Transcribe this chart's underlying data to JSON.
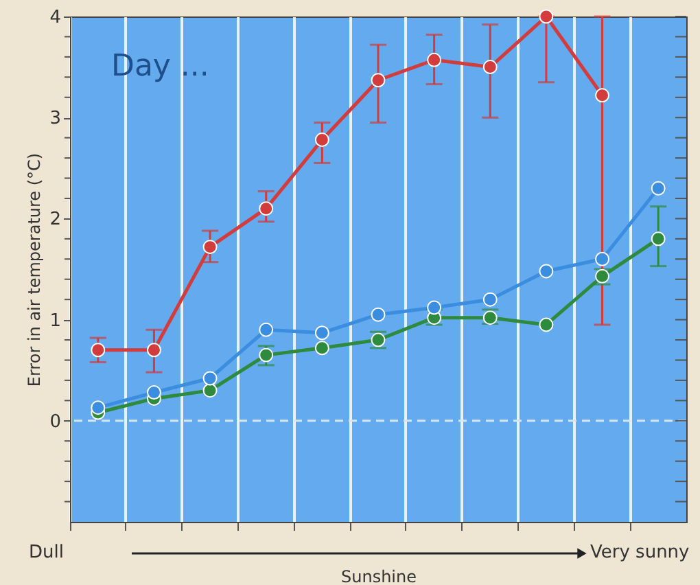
{
  "chart_data": {
    "type": "line",
    "xlabel": "Sunshine",
    "ylabel": "Error in air temperature (°C)",
    "categories": [
      null,
      null,
      null,
      null,
      null,
      null,
      null,
      null,
      null,
      null,
      null
    ],
    "series": [
      {
        "color": "#d23c3c",
        "values": [
          0.7,
          0.7,
          1.72,
          2.1,
          2.78,
          3.37,
          3.57,
          3.5,
          4.0,
          3.22,
          null
        ],
        "errors": [
          [
            0.58,
            0.82
          ],
          [
            0.48,
            0.9
          ],
          [
            1.57,
            1.88
          ],
          [
            1.97,
            2.27
          ],
          [
            2.55,
            2.95
          ],
          [
            2.95,
            3.72
          ],
          [
            3.33,
            3.82
          ],
          [
            3.0,
            3.92
          ],
          [
            3.35,
            4.0
          ],
          [
            0.95,
            4.0
          ],
          null
        ]
      },
      {
        "color": "#3b8de0",
        "values": [
          0.13,
          0.28,
          0.42,
          0.9,
          0.87,
          1.05,
          1.12,
          1.2,
          1.48,
          1.6,
          2.3
        ]
      },
      {
        "color": "#2e8a3c",
        "values": [
          0.08,
          0.22,
          0.3,
          0.65,
          0.72,
          0.8,
          1.02,
          1.02,
          0.95,
          1.43,
          1.8
        ],
        "errors": [
          null,
          null,
          null,
          [
            0.55,
            0.74
          ],
          null,
          [
            0.72,
            0.88
          ],
          [
            0.95,
            1.1
          ],
          [
            0.96,
            1.1
          ],
          null,
          [
            1.35,
            1.5
          ],
          [
            1.53,
            2.12
          ]
        ]
      }
    ],
    "ylim": [
      -1,
      4
    ],
    "yticks": [
      {
        "value": -0.8,
        "label": null
      },
      {
        "value": -0.6,
        "label": null
      },
      {
        "value": -0.4,
        "label": null
      },
      {
        "value": -0.2,
        "label": null
      },
      0,
      {
        "value": 0.2,
        "label": null
      },
      {
        "value": 0.4,
        "label": null
      },
      {
        "value": 0.6,
        "label": null
      },
      {
        "value": 0.8,
        "label": null
      },
      1,
      {
        "value": 1.2,
        "label": null
      },
      {
        "value": 1.4,
        "label": null
      },
      {
        "value": 1.6,
        "label": null
      },
      {
        "value": 1.8,
        "label": null
      },
      2,
      {
        "value": 2.2,
        "label": null
      },
      {
        "value": 2.4,
        "label": null
      },
      {
        "value": 2.6,
        "label": null
      },
      {
        "value": 2.8,
        "label": null
      },
      3,
      {
        "value": 3.2,
        "label": null
      },
      {
        "value": 3.4,
        "label": null
      },
      {
        "value": 3.6,
        "label": null
      },
      {
        "value": 3.8,
        "label": null
      },
      4
    ],
    "ref_lines": [
      {
        "axis": "y",
        "value": 0,
        "color": "#d8e6f2",
        "line_style": "dashed"
      }
    ],
    "grid": "x",
    "marker": "circle",
    "line_style": "solid",
    "tick_labels": "y",
    "annotations": [
      "Day ...",
      "Dull",
      "Very sunny"
    ]
  }
}
